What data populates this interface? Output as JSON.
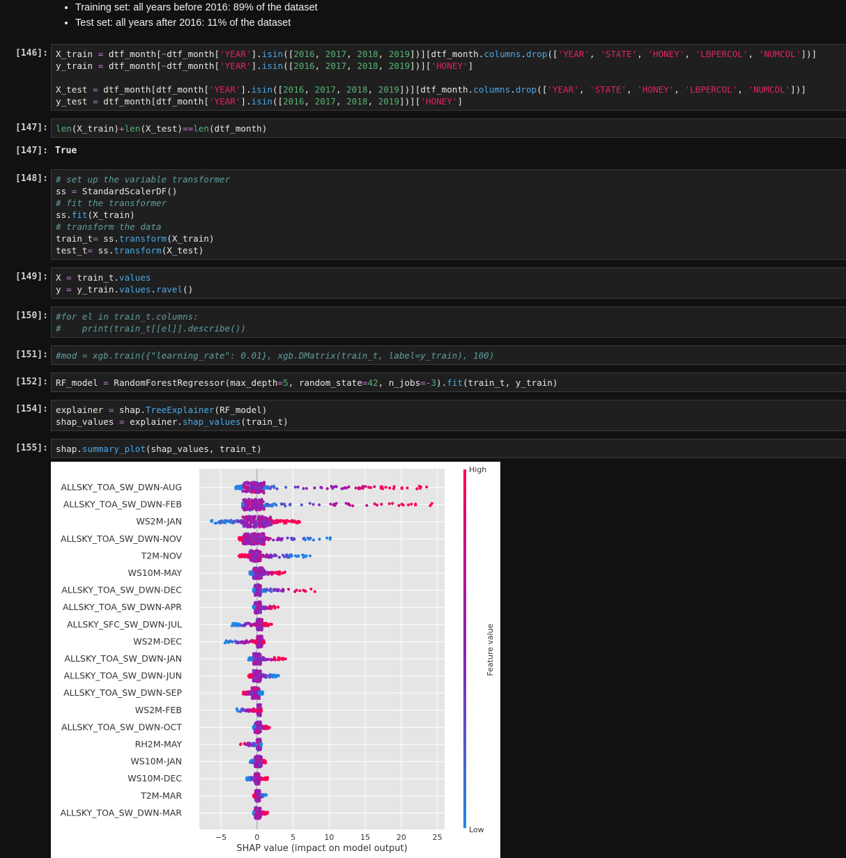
{
  "notes": {
    "bullets": [
      "Training set: all years before 2016: 89% of the dataset",
      "Test set: all years after 2016: 11% of the dataset"
    ]
  },
  "cells": [
    {
      "id": "146",
      "prompt": "[146]:"
    },
    {
      "id": "147",
      "prompt": "[147]:",
      "output_prompt": "[147]:",
      "output": "True"
    },
    {
      "id": "148",
      "prompt": "[148]:"
    },
    {
      "id": "149",
      "prompt": "[149]:"
    },
    {
      "id": "150",
      "prompt": "[150]:"
    },
    {
      "id": "151",
      "prompt": "[151]:"
    },
    {
      "id": "152",
      "prompt": "[152]:"
    },
    {
      "id": "154",
      "prompt": "[154]:"
    },
    {
      "id": "155",
      "prompt": "[155]:"
    }
  ],
  "code": {
    "c146": [
      [
        [
          "X_train ",
          ""
        ],
        [
          "=",
          "k"
        ],
        [
          " dtf_month[",
          ""
        ],
        [
          "~",
          "k"
        ],
        [
          "dtf_month[",
          ""
        ],
        [
          "'YEAR'",
          "s"
        ],
        [
          "].",
          ""
        ],
        [
          "isin",
          "f"
        ],
        [
          "([",
          ""
        ],
        [
          "2016",
          "n"
        ],
        [
          ", ",
          ""
        ],
        [
          "2017",
          "n"
        ],
        [
          ", ",
          ""
        ],
        [
          "2018",
          "n"
        ],
        [
          ", ",
          ""
        ],
        [
          "2019",
          "n"
        ],
        [
          "])][dtf_month.",
          ""
        ],
        [
          "columns",
          "f"
        ],
        [
          ".",
          ""
        ],
        [
          "drop",
          "f"
        ],
        [
          "([",
          ""
        ],
        [
          "'YEAR'",
          "s"
        ],
        [
          ", ",
          ""
        ],
        [
          "'STATE'",
          "s"
        ],
        [
          ", ",
          ""
        ],
        [
          "'HONEY'",
          "s"
        ],
        [
          ", ",
          ""
        ],
        [
          "'LBPERCOL'",
          "s"
        ],
        [
          ", ",
          ""
        ],
        [
          "'NUMCOL'",
          "s"
        ],
        [
          "])]",
          ""
        ]
      ],
      [
        [
          "y_train ",
          ""
        ],
        [
          "=",
          "k"
        ],
        [
          " dtf_month[",
          ""
        ],
        [
          "~",
          "k"
        ],
        [
          "dtf_month[",
          ""
        ],
        [
          "'YEAR'",
          "s"
        ],
        [
          "].",
          ""
        ],
        [
          "isin",
          "f"
        ],
        [
          "([",
          ""
        ],
        [
          "2016",
          "n"
        ],
        [
          ", ",
          ""
        ],
        [
          "2017",
          "n"
        ],
        [
          ", ",
          ""
        ],
        [
          "2018",
          "n"
        ],
        [
          ", ",
          ""
        ],
        [
          "2019",
          "n"
        ],
        [
          "])][",
          ""
        ],
        [
          "'HONEY'",
          "s"
        ],
        [
          "]",
          ""
        ]
      ],
      [
        [
          "",
          ""
        ]
      ],
      [
        [
          "X_test ",
          ""
        ],
        [
          "=",
          "k"
        ],
        [
          " dtf_month[dtf_month[",
          ""
        ],
        [
          "'YEAR'",
          "s"
        ],
        [
          "].",
          ""
        ],
        [
          "isin",
          "f"
        ],
        [
          "([",
          ""
        ],
        [
          "2016",
          "n"
        ],
        [
          ", ",
          ""
        ],
        [
          "2017",
          "n"
        ],
        [
          ", ",
          ""
        ],
        [
          "2018",
          "n"
        ],
        [
          ", ",
          ""
        ],
        [
          "2019",
          "n"
        ],
        [
          "])][dtf_month.",
          ""
        ],
        [
          "columns",
          "f"
        ],
        [
          ".",
          ""
        ],
        [
          "drop",
          "f"
        ],
        [
          "([",
          ""
        ],
        [
          "'YEAR'",
          "s"
        ],
        [
          ", ",
          ""
        ],
        [
          "'STATE'",
          "s"
        ],
        [
          ", ",
          ""
        ],
        [
          "'HONEY'",
          "s"
        ],
        [
          ", ",
          ""
        ],
        [
          "'LBPERCOL'",
          "s"
        ],
        [
          ", ",
          ""
        ],
        [
          "'NUMCOL'",
          "s"
        ],
        [
          "])]",
          ""
        ]
      ],
      [
        [
          "y_test ",
          ""
        ],
        [
          "=",
          "k"
        ],
        [
          " dtf_month[dtf_month[",
          ""
        ],
        [
          "'YEAR'",
          "s"
        ],
        [
          "].",
          ""
        ],
        [
          "isin",
          "f"
        ],
        [
          "([",
          ""
        ],
        [
          "2016",
          "n"
        ],
        [
          ", ",
          ""
        ],
        [
          "2017",
          "n"
        ],
        [
          ", ",
          ""
        ],
        [
          "2018",
          "n"
        ],
        [
          ", ",
          ""
        ],
        [
          "2019",
          "n"
        ],
        [
          "])][",
          ""
        ],
        [
          "'HONEY'",
          "s"
        ],
        [
          "]",
          ""
        ]
      ]
    ],
    "c147": [
      [
        [
          "len",
          "bi"
        ],
        [
          "(X_train)",
          ""
        ],
        [
          "+",
          "k"
        ],
        [
          "len",
          "bi"
        ],
        [
          "(X_test)",
          ""
        ],
        [
          "==",
          "k"
        ],
        [
          "len",
          "bi"
        ],
        [
          "(dtf_month)",
          ""
        ]
      ]
    ],
    "c148": [
      [
        [
          "# set up the variable transformer",
          "c"
        ]
      ],
      [
        [
          "ss ",
          ""
        ],
        [
          "=",
          "k"
        ],
        [
          " StandardScalerDF()",
          ""
        ]
      ],
      [
        [
          "# fit the transformer",
          "c"
        ]
      ],
      [
        [
          "ss.",
          ""
        ],
        [
          "fit",
          "f"
        ],
        [
          "(X_train)",
          ""
        ]
      ],
      [
        [
          "# transform the data",
          "c"
        ]
      ],
      [
        [
          "train_t",
          ""
        ],
        [
          "=",
          "k"
        ],
        [
          " ss.",
          ""
        ],
        [
          "transform",
          "f"
        ],
        [
          "(X_train)",
          ""
        ]
      ],
      [
        [
          "test_t",
          ""
        ],
        [
          "=",
          "k"
        ],
        [
          " ss.",
          ""
        ],
        [
          "transform",
          "f"
        ],
        [
          "(X_test)",
          ""
        ]
      ]
    ],
    "c149": [
      [
        [
          "X ",
          ""
        ],
        [
          "=",
          "k"
        ],
        [
          " train_t.",
          ""
        ],
        [
          "values",
          "f"
        ]
      ],
      [
        [
          "y ",
          ""
        ],
        [
          "=",
          "k"
        ],
        [
          " y_train.",
          ""
        ],
        [
          "values",
          "f"
        ],
        [
          ".",
          ""
        ],
        [
          "ravel",
          "f"
        ],
        [
          "()",
          ""
        ]
      ]
    ],
    "c150": [
      [
        [
          "#for el in train_t.columns:",
          "c"
        ]
      ],
      [
        [
          "#    print(train_t[[el]].describe())",
          "c"
        ]
      ]
    ],
    "c151": [
      [
        [
          "#mod = xgb.train({\"learning_rate\": 0.01}, xgb.DMatrix(train_t, label=y_train), 100)",
          "c"
        ]
      ]
    ],
    "c152": [
      [
        [
          "RF_model ",
          ""
        ],
        [
          "=",
          "k"
        ],
        [
          " RandomForestRegressor(max_depth",
          ""
        ],
        [
          "=",
          "k"
        ],
        [
          "5",
          "n"
        ],
        [
          ", random_state",
          ""
        ],
        [
          "=",
          "k"
        ],
        [
          "42",
          "n"
        ],
        [
          ", n_jobs",
          ""
        ],
        [
          "=-",
          "k"
        ],
        [
          "3",
          "n"
        ],
        [
          ").",
          ""
        ],
        [
          "fit",
          "f"
        ],
        [
          "(train_t, y_train)",
          ""
        ]
      ]
    ],
    "c154": [
      [
        [
          "explainer ",
          ""
        ],
        [
          "=",
          "k"
        ],
        [
          " shap.",
          ""
        ],
        [
          "TreeExplainer",
          "f"
        ],
        [
          "(RF_model)",
          ""
        ]
      ],
      [
        [
          "shap_values ",
          ""
        ],
        [
          "=",
          "k"
        ],
        [
          " explainer.",
          ""
        ],
        [
          "shap_values",
          "f"
        ],
        [
          "(train_t)",
          ""
        ]
      ]
    ],
    "c155": [
      [
        [
          "shap.",
          ""
        ],
        [
          "summary_plot",
          "f"
        ],
        [
          "(shap_values, train_t)",
          ""
        ]
      ]
    ]
  },
  "colors": {
    "high": "#ff0052",
    "low": "#1e88e5",
    "mid": "#8a20c0",
    "plot_bg": "#e5e5e5"
  },
  "chart_data": {
    "type": "scatter",
    "xlabel": "SHAP value (impact on model output)",
    "xticks": [
      "−5",
      "0",
      "5",
      "10",
      "15",
      "20",
      "25"
    ],
    "xtick_values": [
      -5,
      0,
      5,
      10,
      15,
      20,
      25
    ],
    "xlim": [
      -8,
      26
    ],
    "colorbar": {
      "label": "Feature value",
      "high": "High",
      "low": "Low"
    },
    "features": [
      {
        "name": "ALLSKY_TOA_SW_DWN-AUG",
        "min": -3,
        "max": 24.5,
        "high_side": "right",
        "core": [
          -2,
          1
        ]
      },
      {
        "name": "ALLSKY_TOA_SW_DWN-FEB",
        "min": -2,
        "max": 24.5,
        "high_side": "right",
        "core": [
          -2,
          1
        ]
      },
      {
        "name": "WS2M-JAN",
        "min": -6.5,
        "max": 6,
        "high_side": "right",
        "core": [
          -2,
          2
        ]
      },
      {
        "name": "ALLSKY_TOA_SW_DWN-NOV",
        "min": -2.5,
        "max": 10.5,
        "high_side": "left",
        "core": [
          -2,
          1
        ]
      },
      {
        "name": "T2M-NOV",
        "min": -2.5,
        "max": 7.5,
        "high_side": "left",
        "core": [
          -1,
          0.5
        ]
      },
      {
        "name": "WS10M-MAY",
        "min": -1,
        "max": 4,
        "high_side": "right",
        "core": [
          -0.5,
          1
        ]
      },
      {
        "name": "ALLSKY_TOA_SW_DWN-DEC",
        "min": -0.5,
        "max": 8.5,
        "high_side": "right",
        "core": [
          -0.3,
          0.5
        ]
      },
      {
        "name": "ALLSKY_TOA_SW_DWN-APR",
        "min": -0.5,
        "max": 3,
        "high_side": "right",
        "core": [
          -0.3,
          0.5
        ]
      },
      {
        "name": "ALLSKY_SFC_SW_DWN-JUL",
        "min": -3.5,
        "max": 2.2,
        "high_side": "right",
        "core": [
          0,
          0.7
        ]
      },
      {
        "name": "WS2M-DEC",
        "min": -4.5,
        "max": 1,
        "high_side": "right",
        "core": [
          0,
          0.7
        ]
      },
      {
        "name": "ALLSKY_TOA_SW_DWN-JAN",
        "min": -1.2,
        "max": 4,
        "high_side": "right",
        "core": [
          -0.5,
          0.5
        ]
      },
      {
        "name": "ALLSKY_TOA_SW_DWN-JUN",
        "min": -1.2,
        "max": 3,
        "high_side": "left",
        "core": [
          -0.5,
          0.5
        ]
      },
      {
        "name": "ALLSKY_TOA_SW_DWN-SEP",
        "min": -2,
        "max": 0.8,
        "high_side": "left",
        "core": [
          -0.7,
          0.3
        ]
      },
      {
        "name": "WS2M-FEB",
        "min": -3,
        "max": 0.6,
        "high_side": "right",
        "core": [
          0.1,
          0.5
        ]
      },
      {
        "name": "ALLSKY_TOA_SW_DWN-OCT",
        "min": -0.5,
        "max": 1.8,
        "high_side": "right",
        "core": [
          -0.3,
          0.5
        ]
      },
      {
        "name": "RH2M-MAY",
        "min": -2.3,
        "max": 0.6,
        "high_side": "left",
        "core": [
          0,
          0.5
        ]
      },
      {
        "name": "WS10M-JAN",
        "min": -1,
        "max": 1.2,
        "high_side": "right",
        "core": [
          -0.3,
          0.6
        ]
      },
      {
        "name": "WS10M-DEC",
        "min": -1.5,
        "max": 1.5,
        "high_side": "right",
        "core": [
          -0.3,
          0.3
        ]
      },
      {
        "name": "T2M-MAR",
        "min": -0.5,
        "max": 1.3,
        "high_side": "left",
        "core": [
          -0.2,
          0.4
        ]
      },
      {
        "name": "ALLSKY_TOA_SW_DWN-MAR",
        "min": -0.5,
        "max": 1.5,
        "high_side": "right",
        "core": [
          -0.3,
          0.5
        ]
      }
    ]
  }
}
